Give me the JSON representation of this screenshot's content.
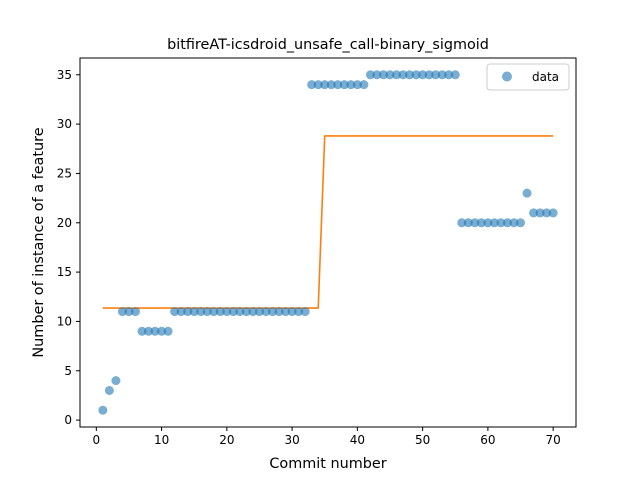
{
  "chart_data": {
    "type": "scatter",
    "title": "bitfireAT-icsdroid_unsafe_call-binary_sigmoid",
    "xlabel": "Commit number",
    "ylabel": "Number of instance of a feature",
    "xlim": [
      -2.5,
      73.5
    ],
    "ylim": [
      -0.7,
      36.7
    ],
    "xticks": [
      0,
      10,
      20,
      30,
      40,
      50,
      60,
      70
    ],
    "yticks": [
      0,
      5,
      10,
      15,
      20,
      25,
      30,
      35
    ],
    "grid": false,
    "legend": {
      "placement": "top-right",
      "entries": [
        "data"
      ]
    },
    "colors": {
      "data": "#1f77b4",
      "fit": "#ff7f0e"
    },
    "series": [
      {
        "name": "data",
        "kind": "scatter",
        "x": [
          1,
          2,
          3,
          4,
          5,
          6,
          7,
          8,
          9,
          10,
          11,
          12,
          13,
          14,
          15,
          16,
          17,
          18,
          19,
          20,
          21,
          22,
          23,
          24,
          25,
          26,
          27,
          28,
          29,
          30,
          31,
          32,
          33,
          34,
          35,
          36,
          37,
          38,
          39,
          40,
          41,
          42,
          43,
          44,
          45,
          46,
          47,
          48,
          49,
          50,
          51,
          52,
          53,
          54,
          55,
          56,
          57,
          58,
          59,
          60,
          61,
          62,
          63,
          64,
          65,
          66,
          67,
          68,
          69,
          70
        ],
        "y": [
          1,
          3,
          4,
          11,
          11,
          11,
          9,
          9,
          9,
          9,
          9,
          11,
          11,
          11,
          11,
          11,
          11,
          11,
          11,
          11,
          11,
          11,
          11,
          11,
          11,
          11,
          11,
          11,
          11,
          11,
          11,
          11,
          34,
          34,
          34,
          34,
          34,
          34,
          34,
          34,
          34,
          35,
          35,
          35,
          35,
          35,
          35,
          35,
          35,
          35,
          35,
          35,
          35,
          35,
          35,
          20,
          20,
          20,
          20,
          20,
          20,
          20,
          20,
          20,
          20,
          23,
          21,
          21,
          21,
          21
        ]
      },
      {
        "kind": "line",
        "x": [
          1,
          34,
          35,
          70
        ],
        "y": [
          11.35,
          11.35,
          28.8,
          28.8
        ]
      }
    ]
  }
}
